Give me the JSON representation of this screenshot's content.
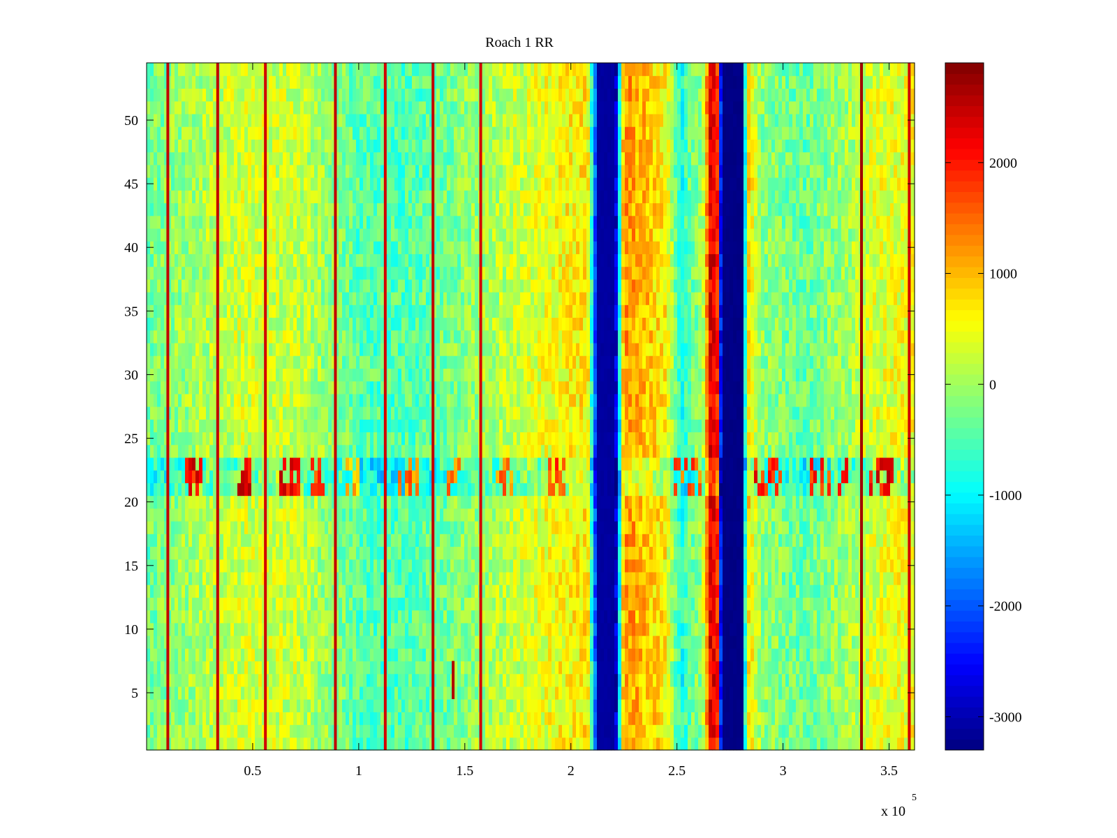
{
  "chart_data": {
    "type": "heatmap",
    "title": "Roach 1 RR",
    "xlabel": "",
    "ylabel": "",
    "colormap": "jet",
    "xlim": [
      0,
      362000
    ],
    "ylim": [
      0.5,
      54.5
    ],
    "x_multiplier_label": "x 10",
    "x_multiplier_exponent": "5",
    "x_ticks": [
      {
        "value": 50000,
        "label": "0.5"
      },
      {
        "value": 100000,
        "label": "1"
      },
      {
        "value": 150000,
        "label": "1.5"
      },
      {
        "value": 200000,
        "label": "2"
      },
      {
        "value": 250000,
        "label": "2.5"
      },
      {
        "value": 300000,
        "label": "3"
      },
      {
        "value": 350000,
        "label": "3.5"
      }
    ],
    "y_ticks": [
      {
        "value": 5,
        "label": "5"
      },
      {
        "value": 10,
        "label": "10"
      },
      {
        "value": 15,
        "label": "15"
      },
      {
        "value": 20,
        "label": "20"
      },
      {
        "value": 25,
        "label": "25"
      },
      {
        "value": 30,
        "label": "30"
      },
      {
        "value": 35,
        "label": "35"
      },
      {
        "value": 40,
        "label": "40"
      },
      {
        "value": 45,
        "label": "45"
      },
      {
        "value": 50,
        "label": "50"
      }
    ],
    "colorbar": {
      "range": [
        -3300,
        2900
      ],
      "ticks": [
        {
          "value": 2000,
          "label": "2000"
        },
        {
          "value": 1000,
          "label": "1000"
        },
        {
          "value": 0,
          "label": "0"
        },
        {
          "value": -1000,
          "label": "-1000"
        },
        {
          "value": -2000,
          "label": "-2000"
        },
        {
          "value": -3000,
          "label": "-3000"
        }
      ]
    },
    "background_profile": [
      {
        "x": 0,
        "v": -300
      },
      {
        "x": 20000,
        "v": 0
      },
      {
        "x": 45000,
        "v": 300
      },
      {
        "x": 70000,
        "v": 250
      },
      {
        "x": 90000,
        "v": -150
      },
      {
        "x": 100000,
        "v": -450
      },
      {
        "x": 120000,
        "v": -500
      },
      {
        "x": 140000,
        "v": -300
      },
      {
        "x": 155000,
        "v": -50
      },
      {
        "x": 175000,
        "v": 250
      },
      {
        "x": 195000,
        "v": 550
      },
      {
        "x": 208000,
        "v": 700
      },
      {
        "x": 213000,
        "v": -3150
      },
      {
        "x": 221000,
        "v": -3150
      },
      {
        "x": 225000,
        "v": 1250
      },
      {
        "x": 232000,
        "v": 1050
      },
      {
        "x": 245000,
        "v": 600
      },
      {
        "x": 252000,
        "v": -900
      },
      {
        "x": 256000,
        "v": -350
      },
      {
        "x": 262000,
        "v": -50
      },
      {
        "x": 266000,
        "v": 2400
      },
      {
        "x": 269000,
        "v": 2000
      },
      {
        "x": 271000,
        "v": -3300
      },
      {
        "x": 281000,
        "v": -3300
      },
      {
        "x": 283000,
        "v": 900
      },
      {
        "x": 290000,
        "v": -100
      },
      {
        "x": 310000,
        "v": -350
      },
      {
        "x": 330000,
        "v": 0
      },
      {
        "x": 345000,
        "v": 400
      },
      {
        "x": 362000,
        "v": 500
      }
    ],
    "stripes": [
      {
        "x": 10000,
        "v": 2500
      },
      {
        "x": 33500,
        "v": 2500
      },
      {
        "x": 56000,
        "v": 2400
      },
      {
        "x": 89000,
        "v": 2500
      },
      {
        "x": 112500,
        "v": 2400
      },
      {
        "x": 135000,
        "v": 2500
      },
      {
        "x": 157500,
        "v": 2400
      },
      {
        "x": 337000,
        "v": 2700
      },
      {
        "x": 359500,
        "v": 2400
      }
    ],
    "band_rows": [
      21,
      23
    ],
    "band_hot_x": [
      {
        "from": 18000,
        "to": 27000,
        "v": 2600
      },
      {
        "from": 42000,
        "to": 50000,
        "v": 2700
      },
      {
        "from": 63000,
        "to": 73000,
        "v": 2700
      },
      {
        "from": 78000,
        "to": 84000,
        "v": 2300
      },
      {
        "from": 93000,
        "to": 100000,
        "v": 1500
      },
      {
        "from": 118000,
        "to": 128000,
        "v": 1800
      },
      {
        "from": 142000,
        "to": 148000,
        "v": 1800
      },
      {
        "from": 165000,
        "to": 172000,
        "v": 1800
      },
      {
        "from": 190000,
        "to": 198000,
        "v": 2200
      },
      {
        "from": 248000,
        "to": 262000,
        "v": 2000
      },
      {
        "from": 286000,
        "to": 300000,
        "v": 2400
      },
      {
        "from": 312000,
        "to": 330000,
        "v": 2300
      },
      {
        "from": 340000,
        "to": 352000,
        "v": 2600
      }
    ],
    "spot": {
      "x": 144500,
      "y_from": 4.5,
      "y_to": 7.5,
      "v": 2600
    }
  }
}
